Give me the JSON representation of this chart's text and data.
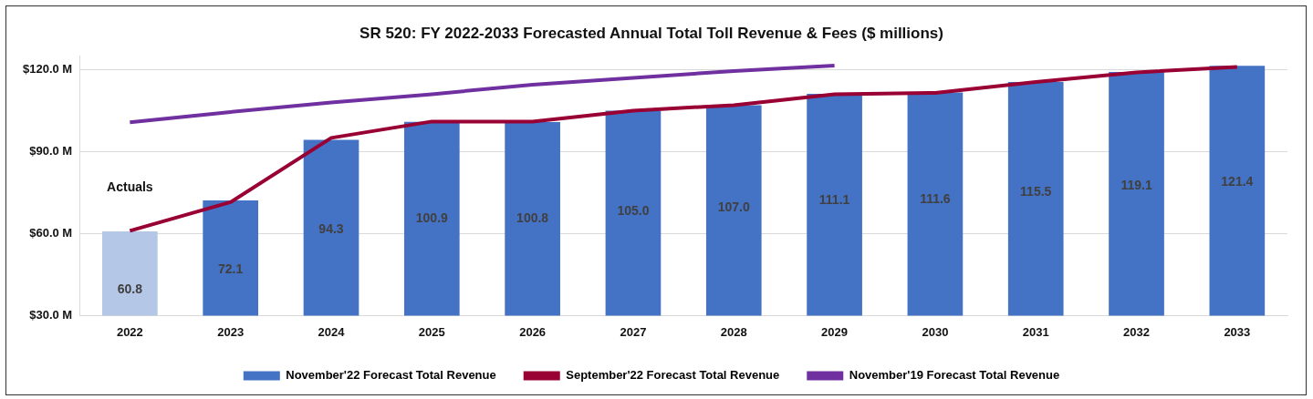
{
  "chart_data": {
    "type": "bar",
    "title": "SR 520: FY 2022-2033 Forecasted Annual Total Toll Revenue & Fees ($ millions)",
    "categories": [
      "2022",
      "2023",
      "2024",
      "2025",
      "2026",
      "2027",
      "2028",
      "2029",
      "2030",
      "2031",
      "2032",
      "2033"
    ],
    "series": [
      {
        "name": "November'22 Forecast Total Revenue",
        "color": "#4472c4",
        "colors": [
          "#b4c7e7",
          "#4472c4",
          "#4472c4",
          "#4472c4",
          "#4472c4",
          "#4472c4",
          "#4472c4",
          "#4472c4",
          "#4472c4",
          "#4472c4",
          "#4472c4",
          "#4472c4"
        ],
        "values": [
          60.8,
          72.1,
          94.3,
          100.9,
          100.8,
          105.0,
          107.0,
          111.1,
          111.6,
          115.5,
          119.1,
          121.4
        ],
        "value_labels": [
          "60.8",
          "72.1",
          "94.3",
          "100.9",
          "100.8",
          "105.0",
          "107.0",
          "111.1",
          "111.6",
          "115.5",
          "119.1",
          "121.4"
        ]
      },
      {
        "name": "September'22 Forecast Total Revenue",
        "type": "line",
        "color": "#990033",
        "values": [
          61,
          71.5,
          95,
          101,
          101,
          105,
          107,
          111,
          111.5,
          115.5,
          119,
          121
        ]
      },
      {
        "name": "November'19 Forecast Total Revenue",
        "type": "line",
        "color": "#7030a0",
        "values": [
          100.7,
          104.5,
          108,
          111,
          114.5,
          117,
          119.5,
          121.5,
          null,
          null,
          null,
          null
        ]
      }
    ],
    "ylim": [
      30,
      125
    ],
    "yticks": [
      {
        "value": 30,
        "label": "$30.0 M"
      },
      {
        "value": 60,
        "label": "$60.0 M"
      },
      {
        "value": 90,
        "label": "$90.0 M"
      },
      {
        "value": 120,
        "label": "$120.0 M"
      }
    ],
    "grid": "y",
    "legend": "bottom",
    "marker": "none",
    "annotations": [
      "Actuals"
    ]
  }
}
